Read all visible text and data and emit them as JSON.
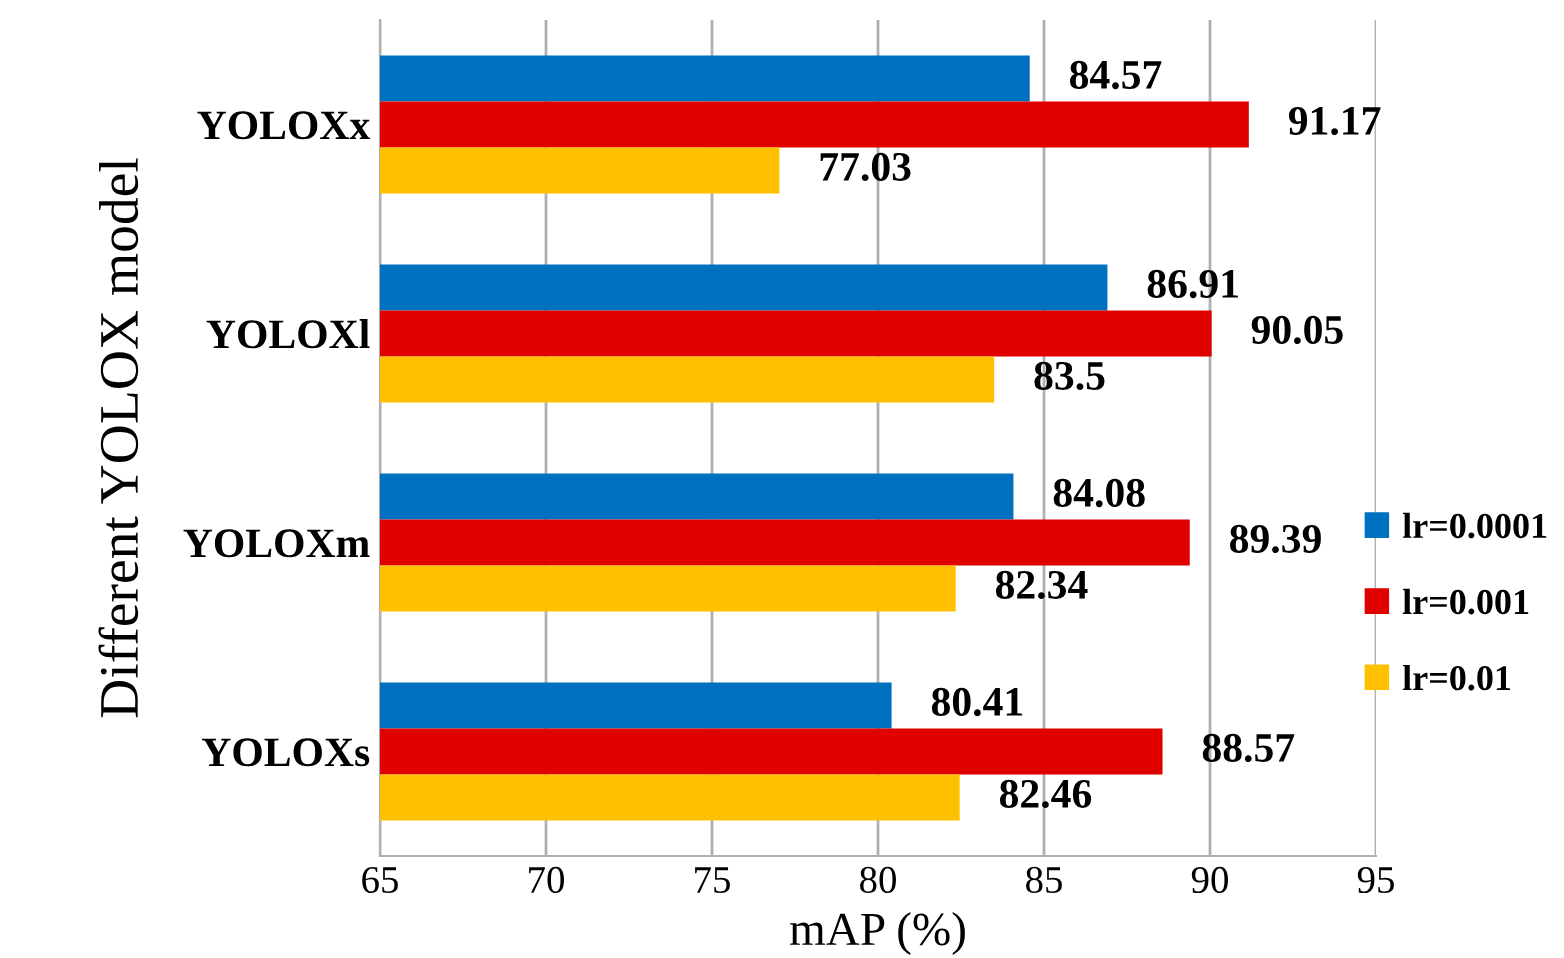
{
  "chart_data": {
    "type": "bar",
    "orientation": "horizontal",
    "xlabel": "mAP (%)",
    "ylabel": "Different YOLOX model",
    "categories": [
      "YOLOXx",
      "YOLOXl",
      "YOLOXm",
      "YOLOXs"
    ],
    "series": [
      {
        "name": "lr=0.0001",
        "color": "#0070c0",
        "values": [
          84.57,
          86.91,
          84.08,
          80.41
        ]
      },
      {
        "name": "lr=0.001",
        "color": "#e00000",
        "values": [
          91.17,
          90.05,
          89.39,
          88.57
        ]
      },
      {
        "name": "lr=0.01",
        "color": "#ffc000",
        "values": [
          77.03,
          83.5,
          82.34,
          82.46
        ]
      }
    ],
    "xlim": [
      65,
      95
    ],
    "xticks": [
      65,
      70,
      75,
      80,
      85,
      90,
      95
    ],
    "grid": "x",
    "legend": "right",
    "data_labels": true
  }
}
